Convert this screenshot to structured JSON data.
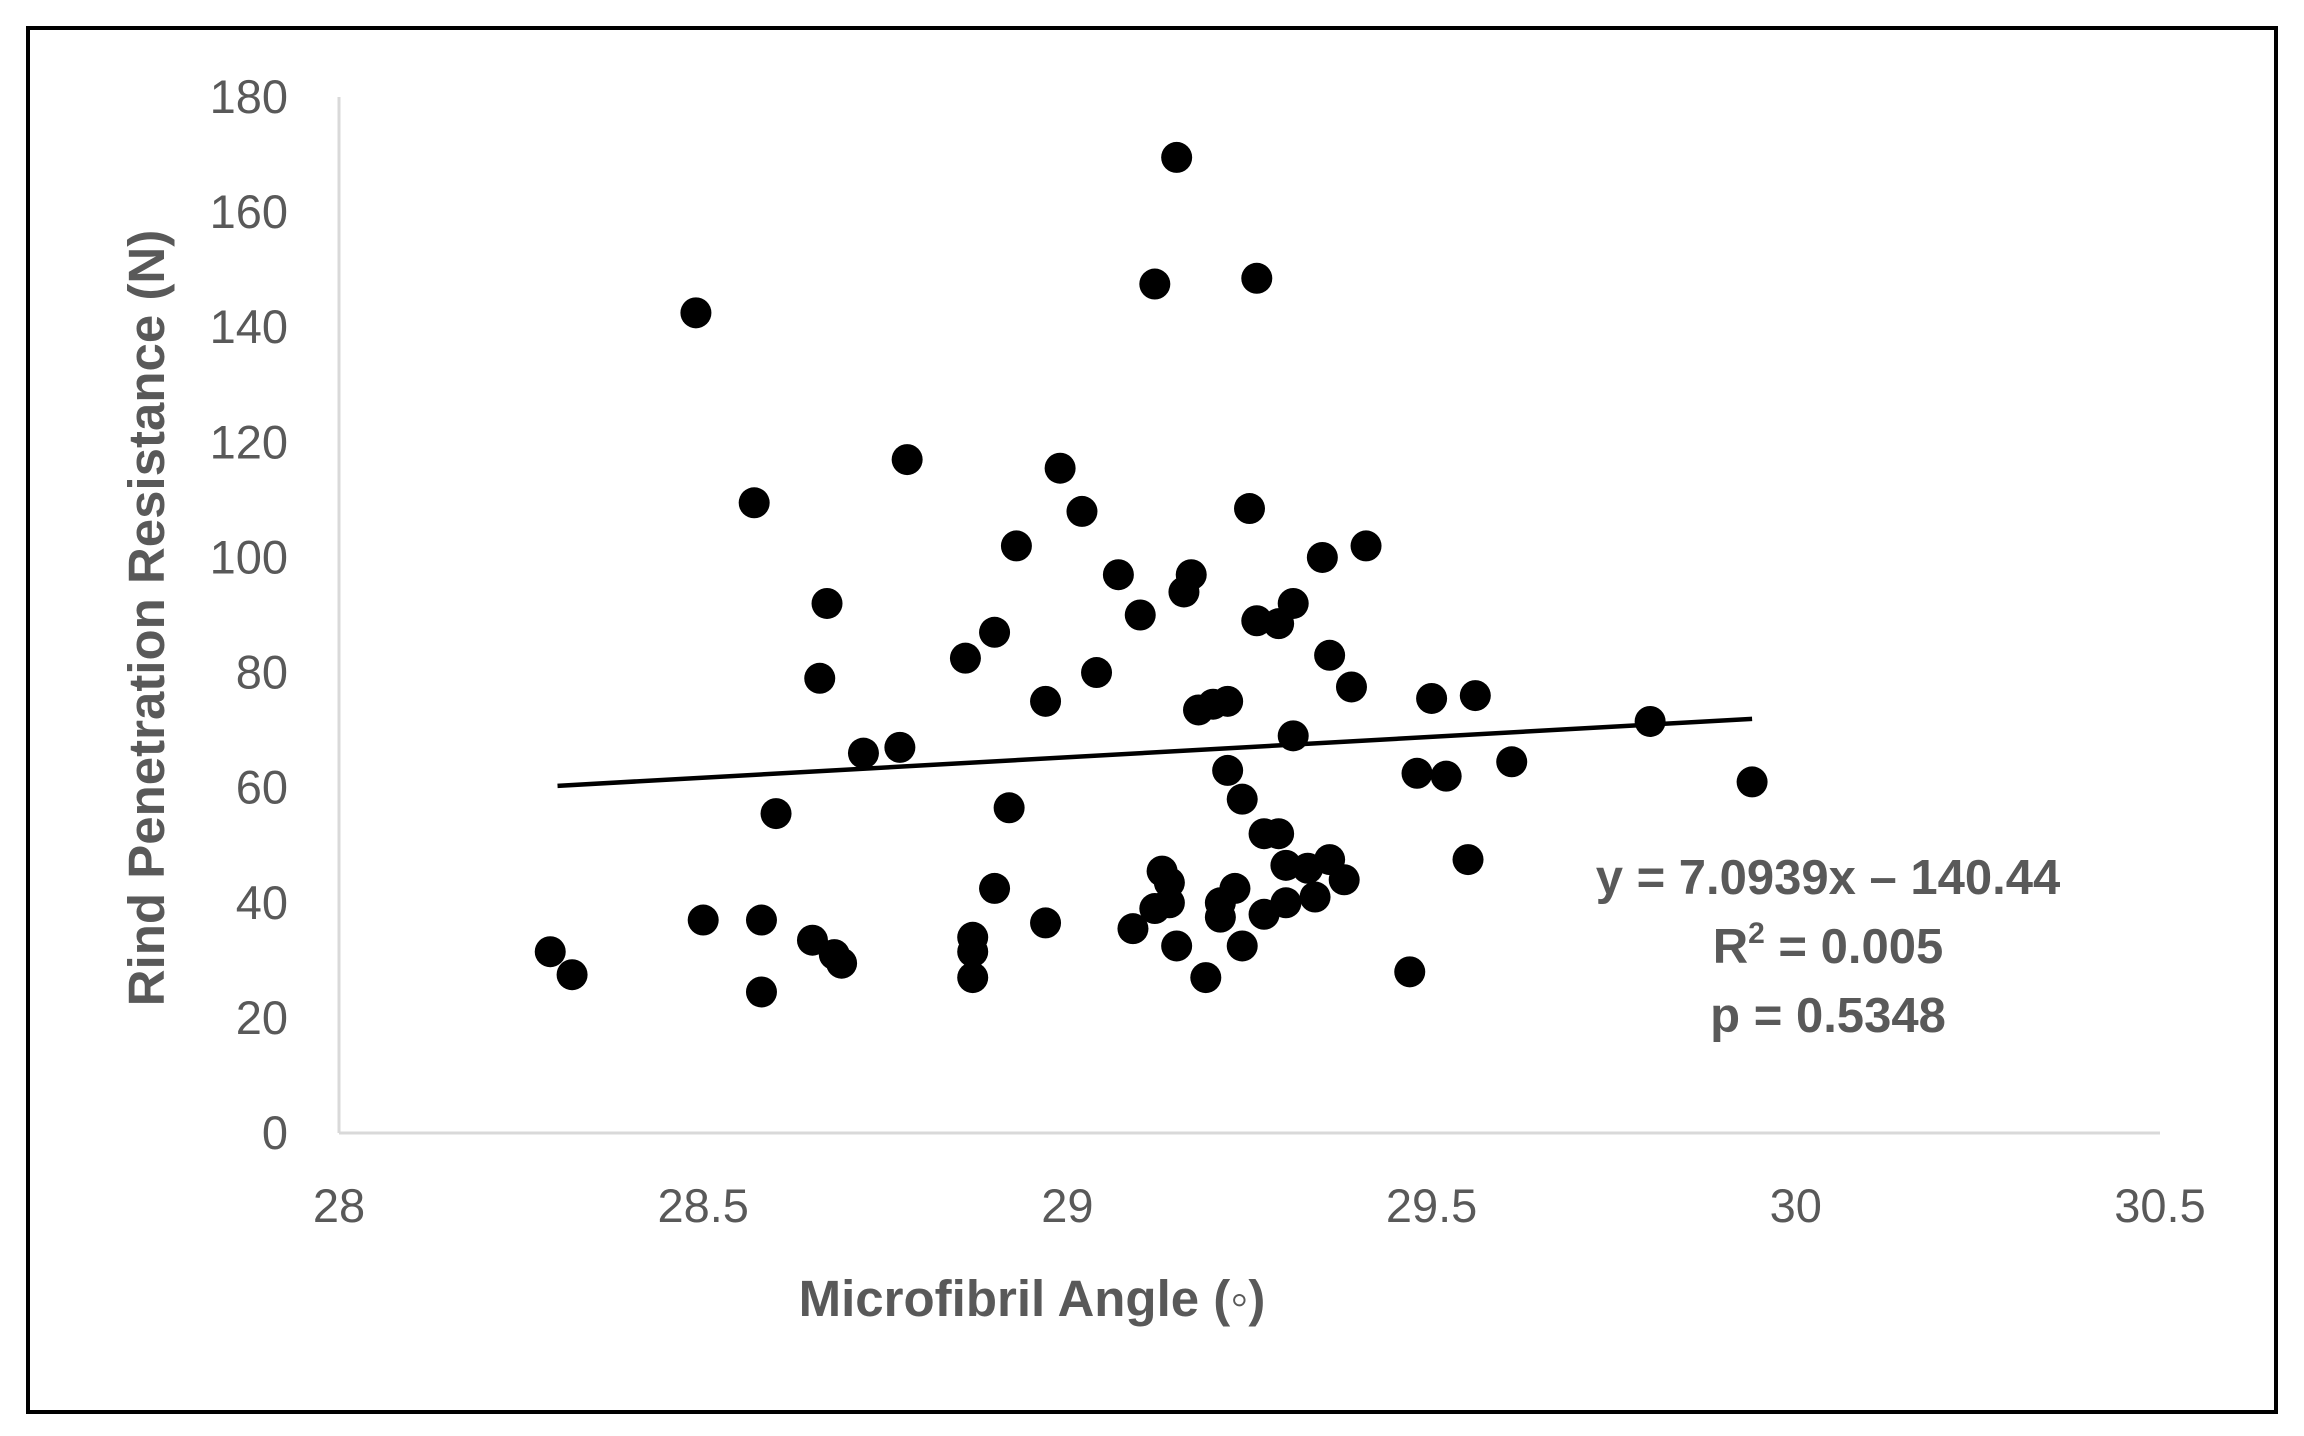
{
  "chart_data": {
    "type": "scatter",
    "title": "",
    "xlabel": "Microfibril Angle (◦)",
    "ylabel": "Rind Penetration Resistance (N)",
    "xlim": [
      28,
      30.5
    ],
    "ylim": [
      0,
      180
    ],
    "x_ticks": [
      "28",
      "28.5",
      "29",
      "29.5",
      "30",
      "30.5"
    ],
    "y_ticks": [
      "0",
      "20",
      "40",
      "60",
      "80",
      "100",
      "120",
      "140",
      "160",
      "180"
    ],
    "grid": false,
    "legend": "none",
    "colors": {
      "points": "#000000",
      "trendline": "#000000",
      "axis": "#d9d9d9",
      "text": "#595959",
      "frame": "#000000"
    },
    "trendline": {
      "slope": 7.0939,
      "intercept": -140.44,
      "x_range": [
        28.3,
        29.94
      ]
    },
    "annotations": {
      "equation": "y = 7.0939x – 140.44",
      "r2_prefix": "R",
      "r2_superscript": "2",
      "r2_suffix": " = 0.005",
      "p_value": "p = 0.5348"
    },
    "points": [
      [
        28.29,
        31.5
      ],
      [
        28.32,
        27.5
      ],
      [
        28.49,
        142.5
      ],
      [
        28.5,
        37.0
      ],
      [
        28.57,
        109.5
      ],
      [
        28.58,
        24.5
      ],
      [
        28.58,
        37.0
      ],
      [
        28.6,
        55.5
      ],
      [
        28.65,
        33.5
      ],
      [
        28.66,
        79.0
      ],
      [
        28.67,
        92.0
      ],
      [
        28.68,
        31.0
      ],
      [
        28.69,
        29.5
      ],
      [
        28.72,
        66.0
      ],
      [
        28.77,
        67.0
      ],
      [
        28.78,
        117.0
      ],
      [
        28.86,
        82.5
      ],
      [
        28.87,
        34.0
      ],
      [
        28.87,
        31.5
      ],
      [
        28.87,
        27.0
      ],
      [
        28.9,
        42.5
      ],
      [
        28.9,
        87.0
      ],
      [
        28.92,
        56.5
      ],
      [
        28.93,
        102.0
      ],
      [
        28.97,
        75.0
      ],
      [
        28.97,
        36.5
      ],
      [
        28.99,
        115.5
      ],
      [
        29.02,
        108.0
      ],
      [
        29.04,
        80.0
      ],
      [
        29.07,
        97.0
      ],
      [
        29.09,
        35.5
      ],
      [
        29.1,
        90.0
      ],
      [
        29.12,
        39.0
      ],
      [
        29.12,
        147.5
      ],
      [
        29.13,
        45.5
      ],
      [
        29.14,
        43.5
      ],
      [
        29.14,
        40.0
      ],
      [
        29.15,
        32.5
      ],
      [
        29.15,
        169.5
      ],
      [
        29.16,
        94.0
      ],
      [
        29.17,
        97.0
      ],
      [
        29.18,
        73.5
      ],
      [
        29.19,
        27.0
      ],
      [
        29.2,
        74.5
      ],
      [
        29.21,
        37.5
      ],
      [
        29.21,
        40.0
      ],
      [
        29.22,
        63.0
      ],
      [
        29.22,
        75.0
      ],
      [
        29.23,
        42.5
      ],
      [
        29.24,
        58.0
      ],
      [
        29.24,
        32.5
      ],
      [
        29.25,
        108.5
      ],
      [
        29.26,
        148.5
      ],
      [
        29.26,
        89.0
      ],
      [
        29.27,
        52.0
      ],
      [
        29.27,
        38.0
      ],
      [
        29.29,
        52.0
      ],
      [
        29.29,
        88.5
      ],
      [
        29.3,
        40.0
      ],
      [
        29.3,
        46.5
      ],
      [
        29.31,
        92.0
      ],
      [
        29.31,
        69.0
      ],
      [
        29.33,
        46.0
      ],
      [
        29.34,
        41.0
      ],
      [
        29.35,
        100.0
      ],
      [
        29.36,
        47.5
      ],
      [
        29.36,
        83.0
      ],
      [
        29.38,
        44.0
      ],
      [
        29.39,
        77.5
      ],
      [
        29.41,
        102.0
      ],
      [
        29.47,
        28.0
      ],
      [
        29.48,
        62.5
      ],
      [
        29.5,
        75.5
      ],
      [
        29.52,
        62.0
      ],
      [
        29.55,
        47.5
      ],
      [
        29.56,
        76.0
      ],
      [
        29.61,
        64.5
      ],
      [
        29.8,
        71.5
      ],
      [
        29.94,
        61.0
      ]
    ]
  }
}
